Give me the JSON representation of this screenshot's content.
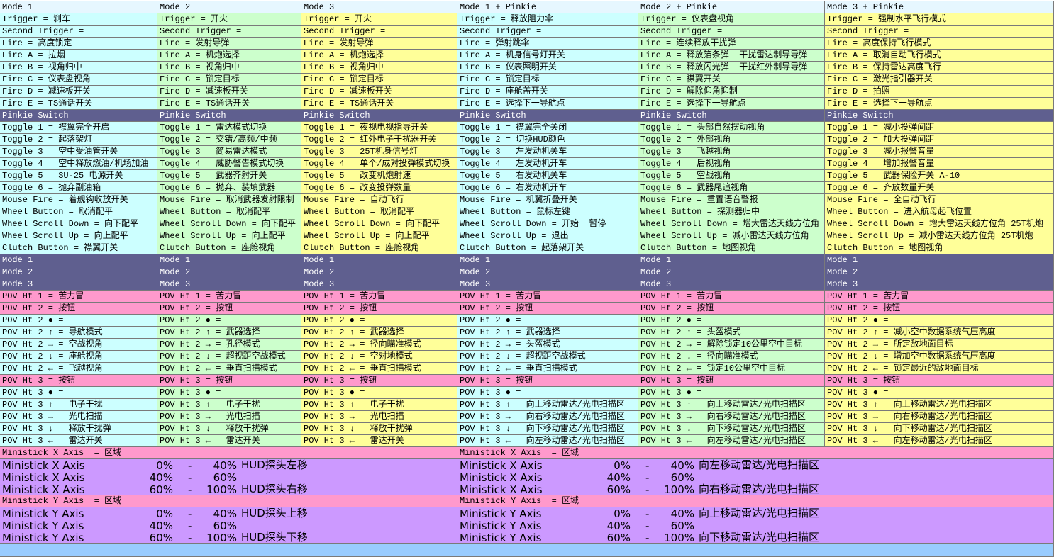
{
  "table": {
    "rows": [
      [
        "Mode 1",
        "Mode 2",
        "Mode 3",
        "Mode 1 + Pinkie",
        "Mode 2 + Pinkie",
        "Mode 3 + Pinkie"
      ],
      [
        "Trigger = 刹车",
        "Trigger = 开火",
        "Trigger = 开火",
        "Trigger = 释放阻力伞",
        "Trigger = 仪表盘视角",
        "Trigger = 强制水平飞行模式"
      ],
      [
        "Second Trigger =",
        "Second Trigger =",
        "Second Trigger =",
        "Second Trigger =",
        "Second Trigger =",
        "Second Trigger ="
      ],
      [
        "Fire = 高度锁定",
        "Fire = 发射导弹",
        "Fire = 发射导弹",
        "Fire = 弹射跳伞",
        "Fire = 连续释放干扰弹",
        "Fire = 高度保持飞行模式"
      ],
      [
        "Fire A = 拉烟",
        "Fire A = 机炮选择",
        "Fire A = 机炮选择",
        "Fire A = 机身信号灯开关",
        "Fire A = 释放箔条弹  干扰雷达制导导弹",
        "Fire A = 取消自动飞行模式"
      ],
      [
        "Fire B = 视角归中",
        "Fire B = 视角归中",
        "Fire B = 视角归中",
        "Fire B = 仪表照明开关",
        "Fire B = 释放闪光弹  干扰红外制导导弹",
        "Fire B = 保持雷达高度飞行"
      ],
      [
        "Fire C = 仪表盘视角",
        "Fire C = 锁定目标",
        "Fire C = 锁定目标",
        "Fire C = 锁定目标",
        "Fire C = 襟翼开关",
        "Fire C = 激光指引器开关"
      ],
      [
        "Fire D = 减速板开关",
        "Fire D = 减速板开关",
        "Fire D = 减速板开关",
        "Fire D = 座舱盖开关",
        "Fire D = 解除仰角抑制",
        "Fire D = 拍照"
      ],
      [
        "Fire E = TS通话开关",
        "Fire E = TS通话开关",
        "Fire E = TS通话开关",
        "Fire E = 选择下一导航点",
        "Fire E = 选择下一导航点",
        "Fire E = 选择下一导航点"
      ],
      [
        "Pinkie Switch",
        "Pinkie Switch",
        "Pinkie Switch",
        "Pinkie Switch",
        "Pinkie Switch",
        "Pinkie Switch"
      ],
      [
        "Toggle 1 = 襟翼完全开启",
        "Toggle 1 = 雷达模式切换",
        "Toggle 1 = 夜视电视指导开关",
        "Toggle 1 = 襟翼完全关闭",
        "Toggle 1 = 头部自然摆动视角",
        "Toggle 1 = 减小投弹间距"
      ],
      [
        "Toggle 2 = 起落架灯",
        "Toggle 2 = 交错/高频/中频",
        "Toggle 2 = 红外电子干扰器开关",
        "Toggle 2 = 切换HUD颜色",
        "Toggle 2 = 外部视角",
        "Toggle 2 = 加大投弹间距"
      ],
      [
        "Toggle 3 = 空中受油管开关",
        "Toggle 3 = 简易雷达模式",
        "Toggle 3 = 25T机身信号灯",
        "Toggle 3 = 左发动机关车",
        "Toggle 3 = 飞越视角",
        "Toggle 3 = 减小报警音量"
      ],
      [
        "Toggle 4 = 空中释放燃油/机场加油",
        "Toggle 4 = 威胁警告模式切换",
        "Toggle 4 = 单个/成对投弹模式切换",
        "Toggle 4 = 左发动机开车",
        "Toggle 4 = 后视视角",
        "Toggle 4 = 增加报警音量"
      ],
      [
        "Toggle 5 = SU-25 电源开关",
        "Toggle 5 = 武器齐射开关",
        "Toggle 5 = 改变机炮射速",
        "Toggle 5 = 右发动机关车",
        "Toggle 5 = 空战视角",
        "Toggle 5 = 武器保险开关 A-10"
      ],
      [
        "Toggle 6 = 抛弃副油箱",
        "Toggle 6 = 抛弃、装填武器",
        "Toggle 6 = 改变投弹数量",
        "Toggle 6 = 右发动机开车",
        "Toggle 6 = 武器尾追视角",
        "Toggle 6 = 齐放数量开关"
      ],
      [
        "Mouse Fire = 着舰钩收放开关",
        "Mouse Fire = 取消武器发射限制",
        "Mouse Fire = 自动飞行",
        "Mouse Fire = 机翼折叠开关",
        "Mouse Fire = 重置语音警报",
        "Mouse Fire = 全自动飞行"
      ],
      [
        "Wheel Button = 取消配平",
        "Wheel Button = 取消配平",
        "Wheel Button = 取消配平",
        "Wheel Button = 鼠标左键",
        "Wheel Button = 探测器归中",
        "Wheel Button = 进入航母起飞位置"
      ],
      [
        "Wheel Scroll Down = 向下配平",
        "Wheel Scroll Down = 向下配平",
        "Wheel Scroll Down = 向下配平",
        "Wheel Scroll Down = 开始  暂停",
        "Wheel Scroll Down = 增大雷达天线方位角",
        "Wheel Scroll Down = 增大雷达天线方位角 25T机炮"
      ],
      [
        "Wheel Scroll Up = 向上配平",
        "Wheel Scroll Up = 向上配平",
        "Wheel Scroll Up = 向上配平",
        "Wheel Scroll Up = 退出",
        "Wheel Scroll Up = 减小雷达天线方位角",
        "Wheel Scroll Up = 减小雷达天线方位角 25T机炮"
      ],
      [
        "Clutch Button = 襟翼开关",
        "Clutch Button = 座舱视角",
        "Clutch Button = 座舱视角",
        "Clutch Button = 起落架开关",
        "Clutch Button = 地图视角",
        "Clutch Button = 地图视角"
      ],
      [
        "Mode 1",
        "Mode 1",
        "Mode 1",
        "Mode 1",
        "Mode 1",
        "Mode 1"
      ],
      [
        "Mode 2",
        "Mode 2",
        "Mode 2",
        "Mode 2",
        "Mode 2",
        "Mode 2"
      ],
      [
        "Mode 3",
        "Mode 3",
        "Mode 3",
        "Mode 3",
        "Mode 3",
        "Mode 3"
      ],
      [
        "POV Ht 1 = 苦力冒",
        "POV Ht 1 = 苦力冒",
        "POV Ht 1 = 苦力冒",
        "POV Ht 1 = 苦力冒",
        "POV Ht 1 = 苦力冒",
        "POV Ht 1 = 苦力冒"
      ],
      [
        "POV Ht 2 = 按钮",
        "POV Ht 2 = 按钮",
        "POV Ht 2 = 按钮",
        "POV Ht 2 = 按钮",
        "POV Ht 2 = 按钮",
        "POV Ht 2 = 按钮"
      ],
      [
        "POV Ht 2 ● =",
        "POV Ht 2 ● =",
        "POV Ht 2 ● =",
        "POV Ht 2 ● =",
        "POV Ht 2 ● =",
        "POV Ht 2 ● ="
      ],
      [
        "POV Ht 2 ↑ = 导航模式",
        "POV Ht 2 ↑ = 武器选择",
        "POV Ht 2 ↑ = 武器选择",
        "POV Ht 2 ↑ = 武器选择",
        "POV Ht 2 ↑ = 头盔模式",
        "POV Ht 2 ↑ = 减小空中数据系统气压高度"
      ],
      [
        "POV Ht 2 → = 空战视角",
        "POV Ht 2 → = 孔径模式",
        "POV Ht 2 → = 径向瞄准模式",
        "POV Ht 2 → = 头盔模式",
        "POV Ht 2 → = 解除锁定10公里空中目标",
        "POV Ht 2 → = 所定敌地面目标"
      ],
      [
        "POV Ht 2 ↓ = 座舱视角",
        "POV Ht 2 ↓ = 超视距空战模式",
        "POV Ht 2 ↓ = 空对地模式",
        "POV Ht 2 ↓ = 超视距空战模式",
        "POV Ht 2 ↓ = 径向瞄准模式",
        "POV Ht 2 ↓ = 增加空中数据系统气压高度"
      ],
      [
        "POV Ht 2 ← = 飞越视角",
        "POV Ht 2 ← = 垂直扫描模式",
        "POV Ht 2 ← = 垂直扫描模式",
        "POV Ht 2 ← = 垂直扫描模式",
        "POV Ht 2 ← = 锁定10公里空中目标",
        "POV Ht 2 ← = 锁定最近的敌地面目标"
      ],
      [
        "POV Ht 3 = 按钮",
        "POV Ht 3 = 按钮",
        "POV Ht 3 = 按钮",
        "POV Ht 3 = 按钮",
        "POV Ht 3 = 按钮",
        "POV Ht 3 = 按钮"
      ],
      [
        "POV Ht 3 ● =",
        "POV Ht 3 ● =",
        "POV Ht 3 ● =",
        "POV Ht 3 ● =",
        "POV Ht 3 ● =",
        "POV Ht 3 ● ="
      ],
      [
        "POV Ht 3 ↑ = 电子干扰",
        "POV Ht 3 ↑ = 电子干扰",
        "POV Ht 3 ↑ = 电子干扰",
        "POV Ht 3 ↑ = 向上移动雷达/光电扫描区",
        "POV Ht 3 ↑ = 向上移动雷达/光电扫描区",
        "POV Ht 3 ↑ = 向上移动雷达/光电扫描区"
      ],
      [
        "POV Ht 3 → = 光电扫描",
        "POV Ht 3 → = 光电扫描",
        "POV Ht 3 → = 光电扫描",
        "POV Ht 3 → = 向右移动雷达/光电扫描区",
        "POV Ht 3 → = 向右移动雷达/光电扫描区",
        "POV Ht 3 → = 向右移动雷达/光电扫描区"
      ],
      [
        "POV Ht 3 ↓ = 释放干扰弹",
        "POV Ht 3 ↓ = 释放干扰弹",
        "POV Ht 3 ↓ = 释放干扰弹",
        "POV Ht 3 ↓ = 向下移动雷达/光电扫描区",
        "POV Ht 3 ↓ = 向下移动雷达/光电扫描区",
        "POV Ht 3 ↓ = 向下移动雷达/光电扫描区"
      ],
      [
        "POV Ht 3 ← = 雷达开关",
        "POV Ht 3 ← = 雷达开关",
        "POV Ht 3 ← = 雷达开关",
        "POV Ht 3 ← = 向左移动雷达/光电扫描区",
        "POV Ht 3 ← = 向左移动雷达/光电扫描区",
        "POV Ht 3 ← = 向左移动雷达/光电扫描区"
      ]
    ],
    "ministick": [
      [
        {
          "header": "Ministick X Axis  = 区域",
          "rows": [
            {
              "label": "Ministick X Axis",
              "from": "0%",
              "dash": "-",
              "to": "40%",
              "action": "HUD探头左移"
            },
            {
              "label": "Ministick X Axis",
              "from": "40%",
              "dash": "-",
              "to": "60%"
            },
            {
              "label": "Ministick X Axis",
              "from": "60%",
              "dash": "-",
              "to": "100%",
              "action": "HUD探头右移"
            }
          ]
        },
        {
          "header": "Ministick Y Axis  = 区域",
          "rows": [
            {
              "label": "Ministick Y Axis",
              "from": "0%",
              "dash": "-",
              "to": "40%",
              "action": "HUD探头上移"
            },
            {
              "label": "Ministick Y Axis",
              "from": "40%",
              "dash": "-",
              "to": "60%"
            },
            {
              "label": "Ministick Y Axis",
              "from": "60%",
              "dash": "-",
              "to": "100%",
              "action": "HUD探头下移"
            }
          ]
        }
      ],
      [
        {
          "header": "Ministick X Axis  = 区域",
          "rows": [
            {
              "label": "Ministick X Axis",
              "from": "0%",
              "dash": "-",
              "to": "40%",
              "action": "向左移动雷达/光电扫描区"
            },
            {
              "label": "Ministick X Axis",
              "from": "40%",
              "dash": "-",
              "to": "60%"
            },
            {
              "label": "Ministick X Axis",
              "from": "60%",
              "dash": "-",
              "to": "100%",
              "action": "向右移动雷达/光电扫描区"
            }
          ]
        },
        {
          "header": "Ministick Y Axis  = 区域",
          "rows": [
            {
              "label": "Ministick Y Axis",
              "from": "0%",
              "dash": "-",
              "to": "40%",
              "action": "向上移动雷达/光电扫描区"
            },
            {
              "label": "Ministick Y Axis",
              "from": "40%",
              "dash": "-",
              "to": "60%"
            },
            {
              "label": "Ministick Y Axis",
              "from": "60%",
              "dash": "-",
              "to": "100%",
              "action": "向下移动雷达/光电扫描区"
            }
          ]
        }
      ]
    ]
  }
}
